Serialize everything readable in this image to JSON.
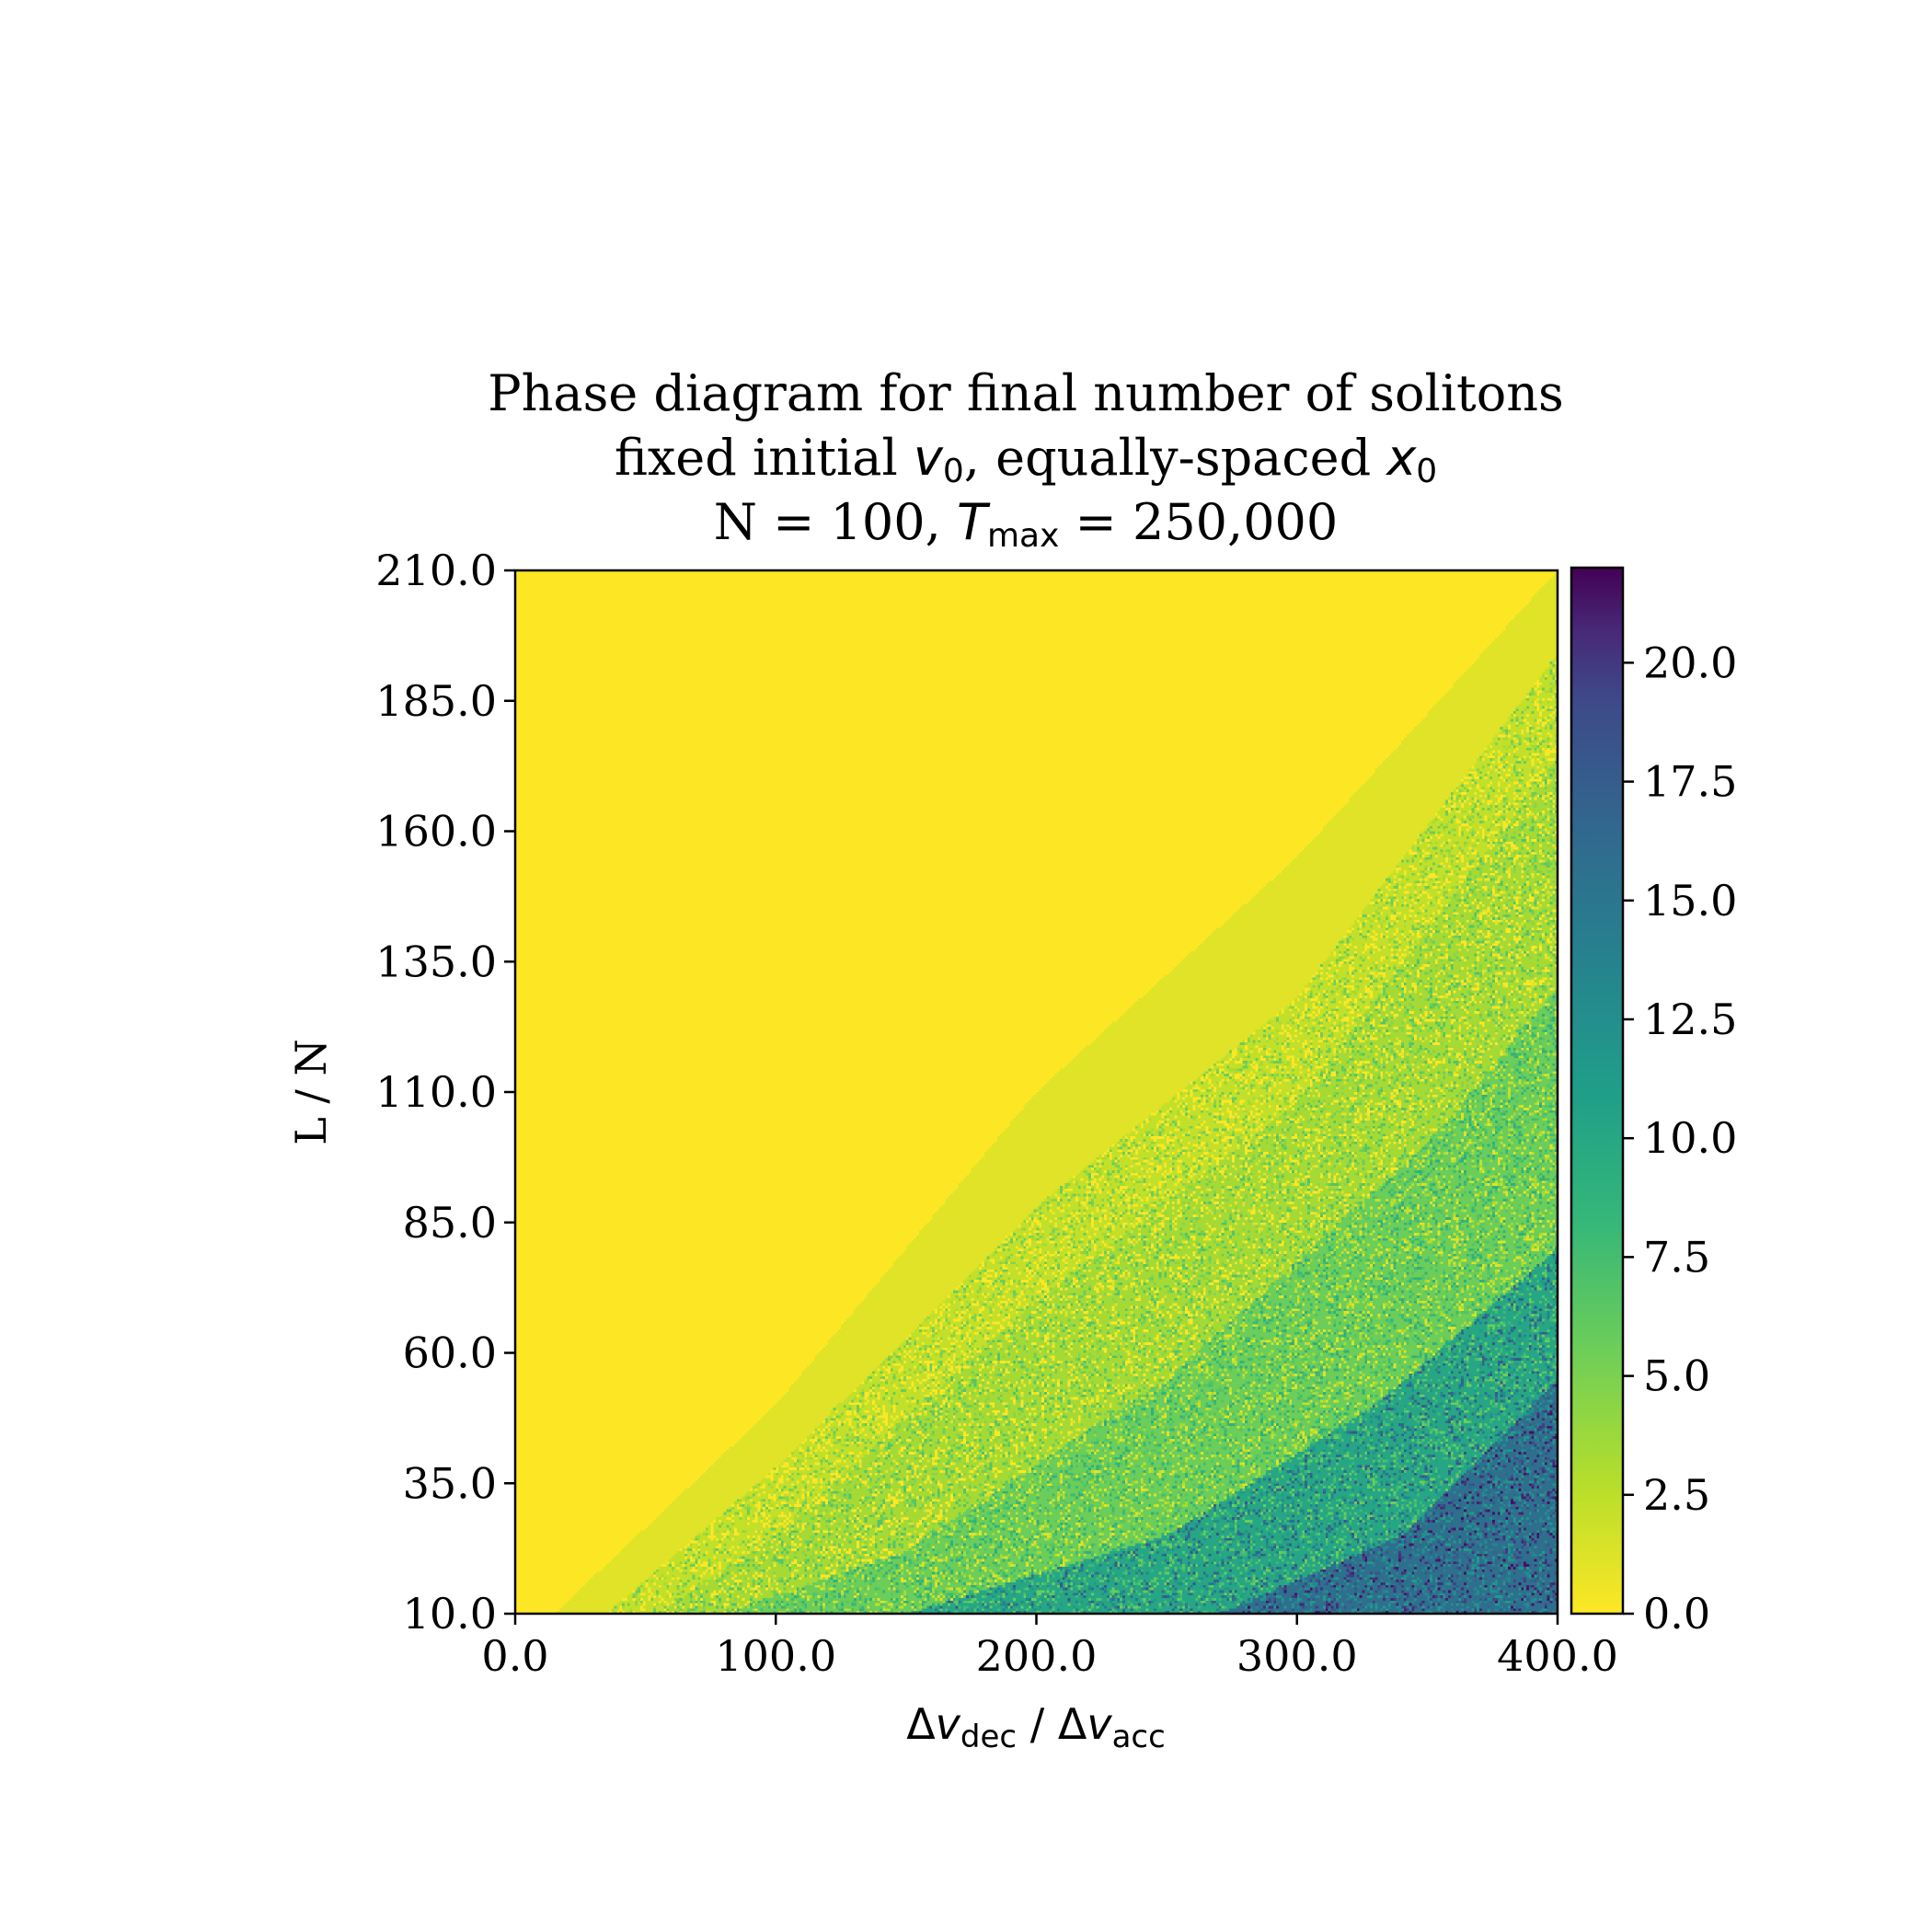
{
  "chart_data": {
    "type": "heatmap",
    "title_lines": {
      "line1": "Phase diagram for final number of solitons",
      "line2_pre": "fixed initial ",
      "line2_v": "v",
      "line2_vsub": "0",
      "line2_mid": ", equally-spaced ",
      "line2_x": "x",
      "line2_xsub": "0",
      "line3_pre": "N = 100, ",
      "line3_T": "T",
      "line3_Tsub": "max",
      "line3_post": " = 250,000"
    },
    "xlabel": {
      "delta1": "Δ",
      "v1": "v",
      "sub1": "dec",
      "sep": " / ",
      "delta2": "Δ",
      "v2": "v",
      "sub2": "acc"
    },
    "ylabel": "L / N",
    "xlim": [
      0,
      400
    ],
    "ylim": [
      10,
      210
    ],
    "x_ticks": [
      0,
      100,
      200,
      300,
      400
    ],
    "x_tick_labels": [
      "0.0",
      "100.0",
      "200.0",
      "300.0",
      "400.0"
    ],
    "y_ticks": [
      10,
      35,
      60,
      85,
      110,
      135,
      160,
      185,
      210
    ],
    "y_tick_labels": [
      "10.0",
      "35.0",
      "60.0",
      "85.0",
      "110.0",
      "135.0",
      "160.0",
      "185.0",
      "210.0"
    ],
    "colorbar": {
      "colormap": "viridis_r",
      "vmin": 0,
      "vmax": 22,
      "ticks": [
        0,
        2.5,
        5,
        7.5,
        10,
        12.5,
        15,
        17.5,
        20
      ],
      "tick_labels": [
        "0.0",
        "2.5",
        "5.0",
        "7.5",
        "10.0",
        "12.5",
        "15.0",
        "17.5",
        "20.0"
      ]
    },
    "value_bands": [
      {
        "value": 0,
        "boundary_x_at_y": [
          [
            0,
            10
          ],
          [
            100,
            66
          ],
          [
            200,
            130
          ],
          [
            250,
            173
          ],
          [
            330,
            210
          ]
        ]
      },
      {
        "value": 1,
        "boundary_x_at_y": [
          [
            15,
            10
          ],
          [
            100,
            50
          ],
          [
            200,
            110
          ],
          [
            300,
            155
          ],
          [
            400,
            210
          ]
        ]
      },
      {
        "value": 2,
        "boundary_x_at_y": [
          [
            35,
            10
          ],
          [
            100,
            38
          ],
          [
            200,
            88
          ],
          [
            300,
            128
          ],
          [
            400,
            194
          ]
        ]
      },
      {
        "value": 3,
        "boundary_x_at_y": [
          [
            55,
            10
          ],
          [
            100,
            25
          ],
          [
            200,
            70
          ],
          [
            300,
            108
          ],
          [
            400,
            174
          ]
        ]
      },
      {
        "value": 5,
        "boundary_x_at_y": [
          [
            80,
            10
          ],
          [
            150,
            22
          ],
          [
            250,
            55
          ],
          [
            350,
            100
          ],
          [
            400,
            130
          ]
        ]
      },
      {
        "value": 9,
        "boundary_x_at_y": [
          [
            150,
            10
          ],
          [
            250,
            25
          ],
          [
            330,
            50
          ],
          [
            400,
            80
          ]
        ]
      },
      {
        "value": 14,
        "boundary_x_at_y": [
          [
            270,
            10
          ],
          [
            340,
            25
          ],
          [
            400,
            55
          ]
        ]
      }
    ],
    "grid": false
  }
}
